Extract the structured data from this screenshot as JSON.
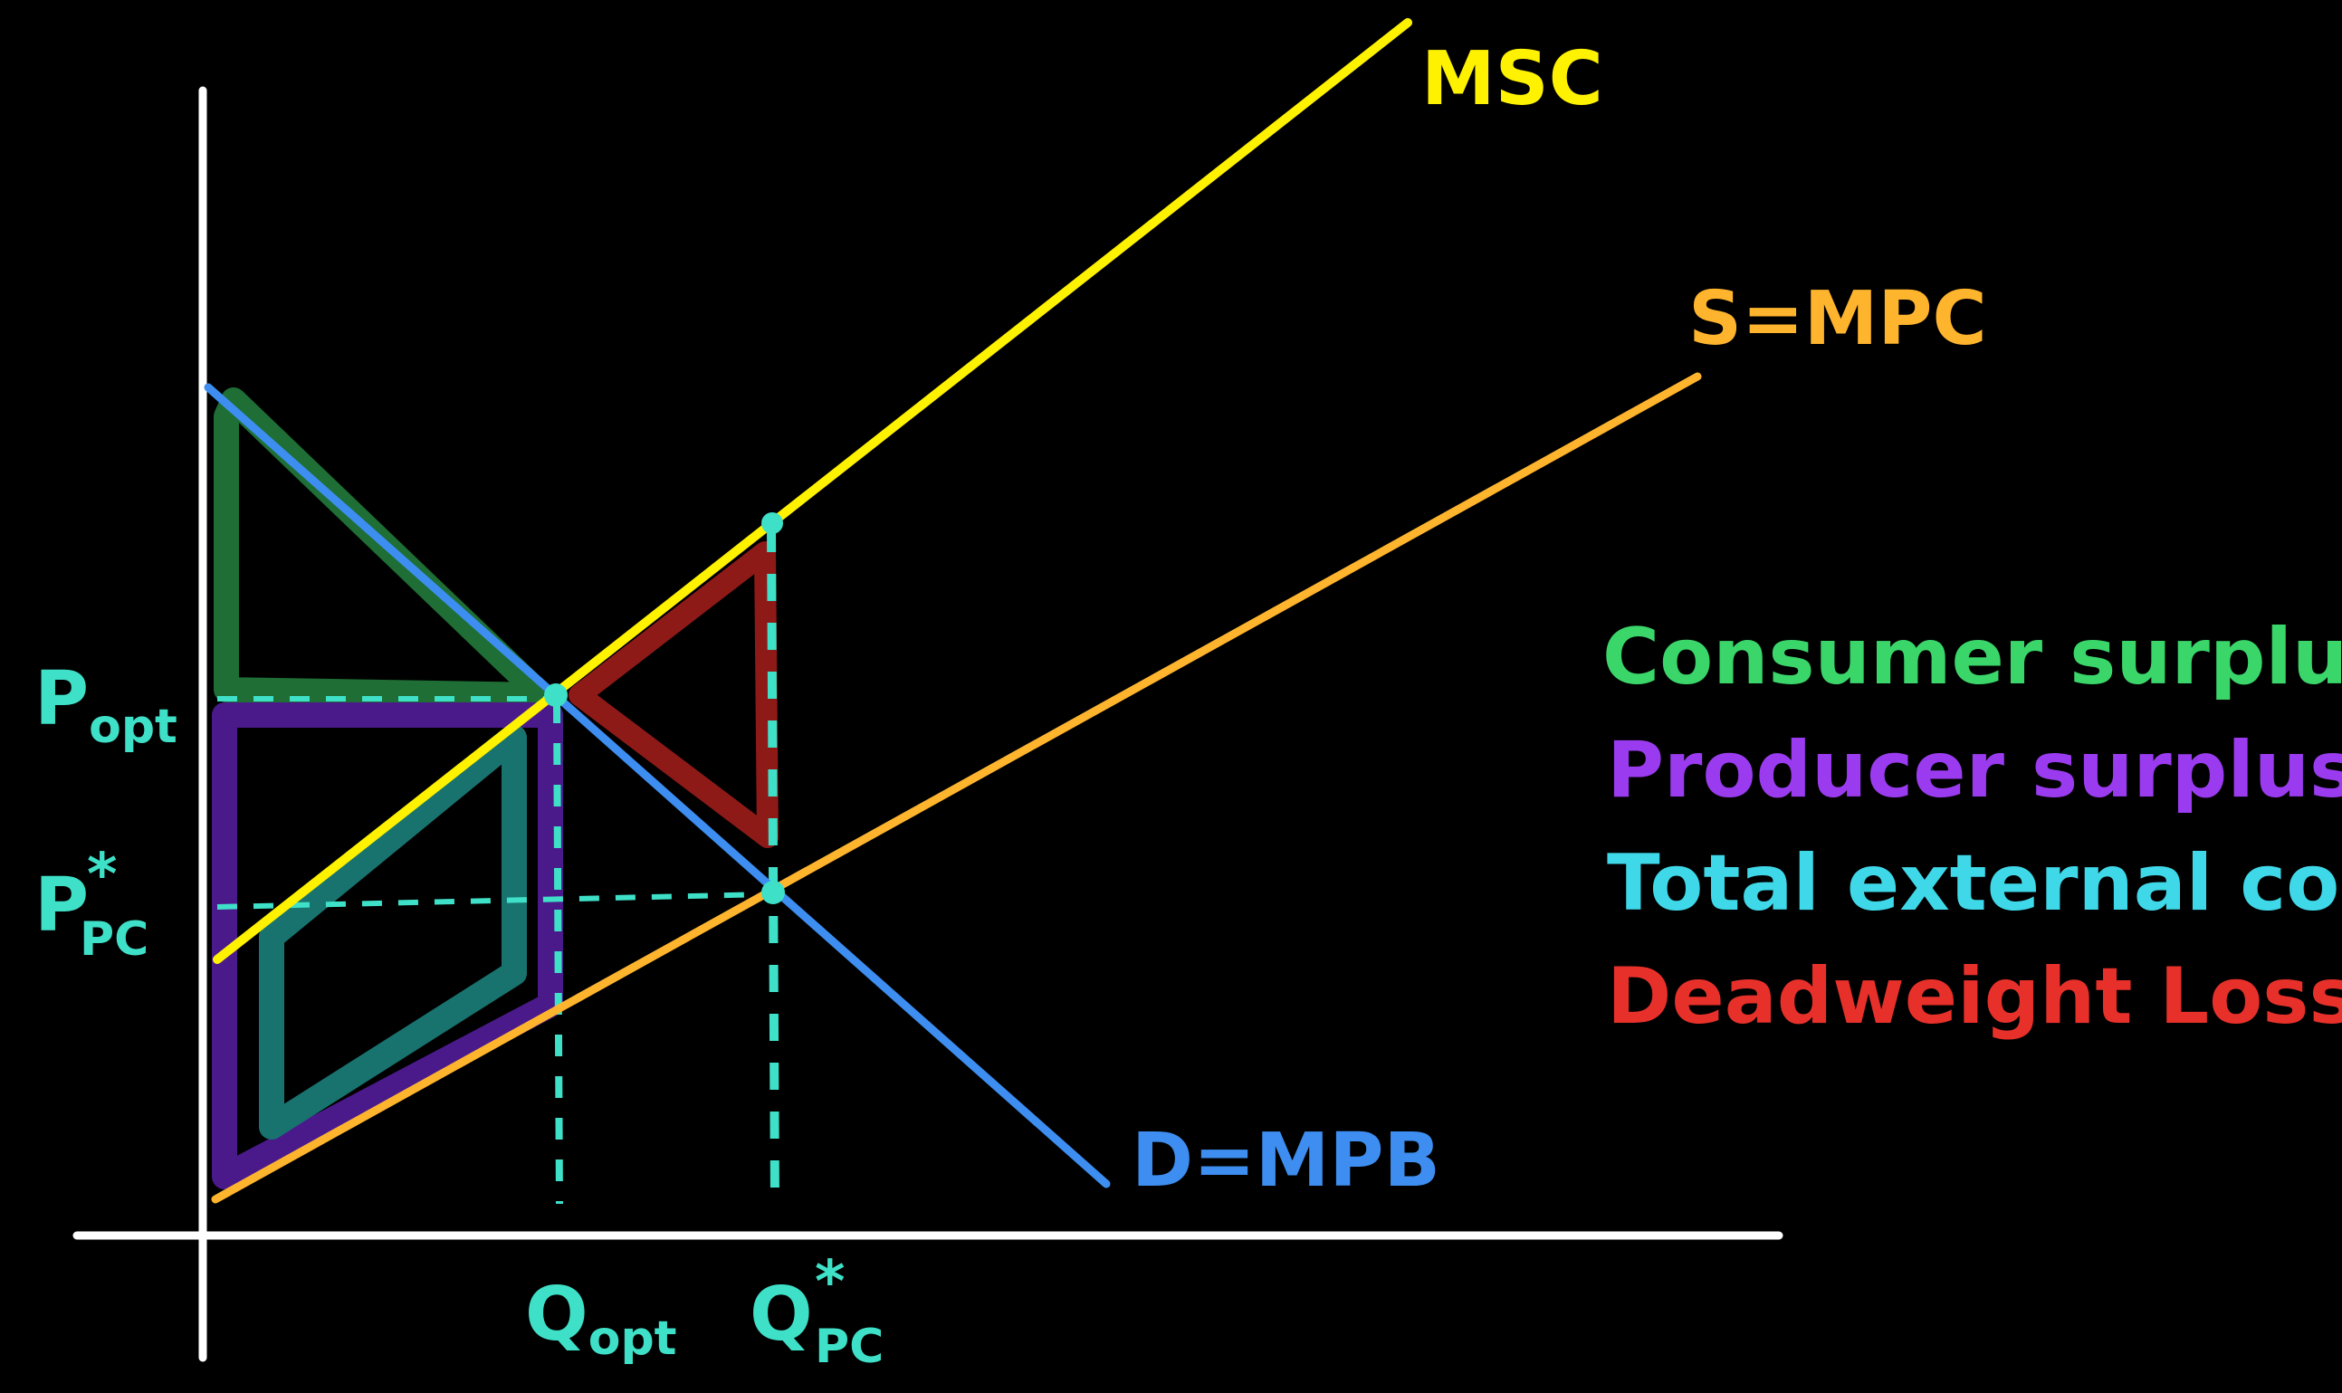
{
  "colors": {
    "background": "#000000",
    "axes": "#ffffff",
    "msc": "#fff200",
    "mpc": "#ffb42e",
    "demand": "#3d8ef0",
    "consumer_surplus": "#1e6e35",
    "producer_surplus": "#4a1a8a",
    "external_cost": "#18736f",
    "deadweight_loss": "#8e1a18",
    "markers": "#3fe0c8",
    "legend_consumer": "#3ad66a",
    "legend_producer": "#9b3bf0",
    "legend_external": "#3fd8e8",
    "legend_deadweight": "#e8302a"
  },
  "curves": {
    "msc_label": "MSC",
    "supply_label": "S=MPC",
    "demand_label": "D=MPB"
  },
  "axes": {
    "p_opt_main": "P",
    "p_opt_sub": "opt",
    "p_pc_main": "P",
    "p_pc_star": "*",
    "p_pc_sub": "PC",
    "q_opt_main": "Q",
    "q_opt_sub": "opt",
    "q_pc_main": "Q",
    "q_pc_star": "*",
    "q_pc_sub": "PC"
  },
  "legend": {
    "items": [
      {
        "label": "Consumer surplus"
      },
      {
        "label": "Producer surplus"
      },
      {
        "label": "Total external cost"
      },
      {
        "label": "Deadweight Loss"
      }
    ]
  }
}
